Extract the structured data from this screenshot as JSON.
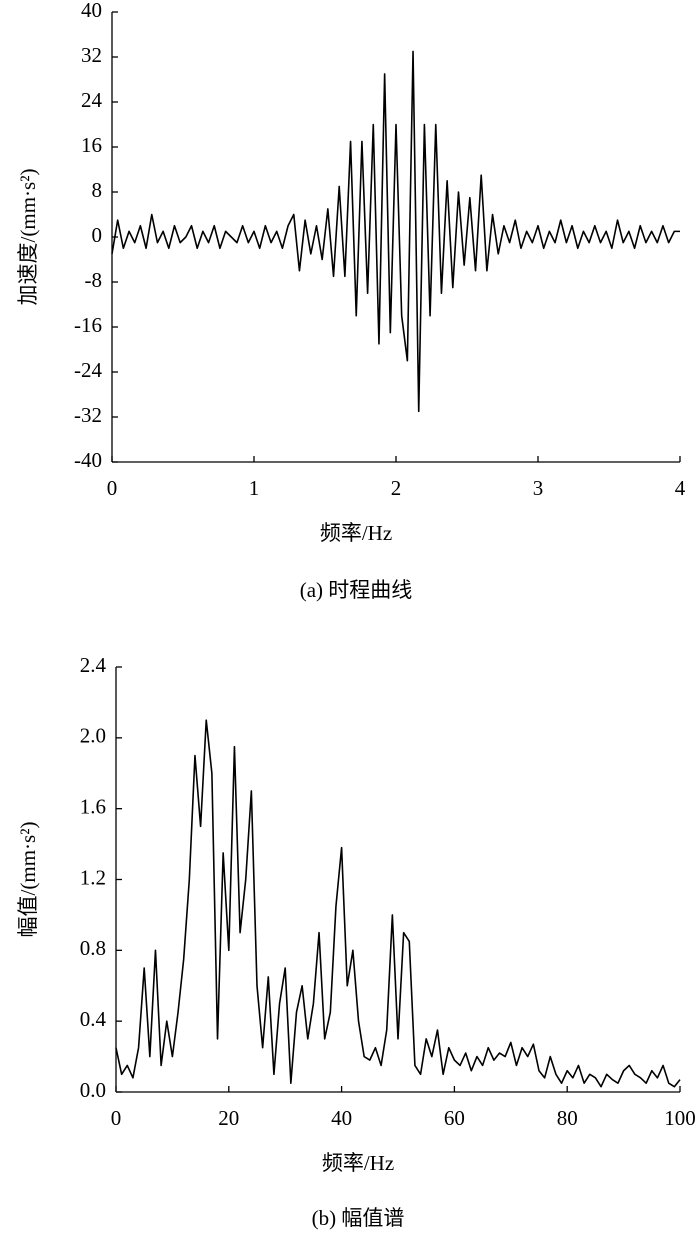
{
  "chart_data": [
    {
      "type": "line",
      "color": "#000000",
      "x_label": "频率/Hz",
      "y_label": "加速度/(mm·s²)",
      "caption": "(a) 时程曲线",
      "xlim": [
        0,
        4
      ],
      "ylim": [
        -40,
        40
      ],
      "xticks": [
        0,
        1,
        2,
        3,
        4
      ],
      "yticks": [
        40,
        32,
        24,
        16,
        8,
        0,
        -8,
        -16,
        -24,
        -32,
        -40
      ],
      "x": [
        0,
        0.04,
        0.08,
        0.12,
        0.16,
        0.2,
        0.24,
        0.28,
        0.32,
        0.36,
        0.4,
        0.44,
        0.48,
        0.52,
        0.56,
        0.6,
        0.64,
        0.68,
        0.72,
        0.76,
        0.8,
        0.84,
        0.88,
        0.92,
        0.96,
        1,
        1.04,
        1.08,
        1.12,
        1.16,
        1.2,
        1.24,
        1.28,
        1.32,
        1.36,
        1.4,
        1.44,
        1.48,
        1.52,
        1.56,
        1.6,
        1.64,
        1.68,
        1.72,
        1.76,
        1.8,
        1.84,
        1.88,
        1.92,
        1.96,
        2,
        2.04,
        2.08,
        2.12,
        2.16,
        2.2,
        2.24,
        2.28,
        2.32,
        2.36,
        2.4,
        2.44,
        2.48,
        2.52,
        2.56,
        2.6,
        2.64,
        2.68,
        2.72,
        2.76,
        2.8,
        2.84,
        2.88,
        2.92,
        2.96,
        3,
        3.04,
        3.08,
        3.12,
        3.16,
        3.2,
        3.24,
        3.28,
        3.32,
        3.36,
        3.4,
        3.44,
        3.48,
        3.52,
        3.56,
        3.6,
        3.64,
        3.68,
        3.72,
        3.76,
        3.8,
        3.84,
        3.88,
        3.92,
        3.96,
        4
      ],
      "values": [
        -3,
        3,
        -2,
        1,
        -1,
        2,
        -2,
        4,
        -1,
        1,
        -2,
        2,
        -1,
        0,
        2,
        -2,
        1,
        -1,
        2,
        -2,
        1,
        0,
        -1,
        2,
        -1,
        1,
        -2,
        2,
        -1,
        1,
        -2,
        2,
        4,
        -6,
        3,
        -3,
        2,
        -4,
        5,
        -7,
        9,
        -7,
        17,
        -14,
        17,
        -10,
        20,
        -19,
        29,
        -17,
        20,
        -14,
        -22,
        33,
        -31,
        20,
        -14,
        20,
        -10,
        10,
        -9,
        8,
        -5,
        7,
        -6,
        11,
        -6,
        4,
        -3,
        2,
        -1,
        3,
        -2,
        1,
        -1,
        2,
        -2,
        1,
        -1,
        3,
        -1,
        2,
        -2,
        1,
        -1,
        2,
        -1,
        1,
        -2,
        3,
        -1,
        1,
        -2,
        2,
        -1,
        1,
        -1,
        2,
        -1,
        1,
        1
      ]
    },
    {
      "type": "line",
      "color": "#000000",
      "x_label": "频率/Hz",
      "y_label": "幅值/(mm·s²)",
      "caption": "(b) 幅值谱",
      "xlim": [
        0,
        100
      ],
      "ylim": [
        0,
        2.4
      ],
      "xticks": [
        0,
        20,
        40,
        60,
        80,
        100
      ],
      "yticks": [
        {
          "value": 0,
          "label": "0.0"
        },
        0.4,
        0.8,
        1.2,
        1.6,
        {
          "value": 2,
          "label": "2.0"
        },
        2.4
      ],
      "x": [
        0,
        1,
        2,
        3,
        4,
        5,
        6,
        7,
        8,
        9,
        10,
        11,
        12,
        13,
        14,
        15,
        16,
        17,
        18,
        19,
        20,
        21,
        22,
        23,
        24,
        25,
        26,
        27,
        28,
        29,
        30,
        31,
        32,
        33,
        34,
        35,
        36,
        37,
        38,
        39,
        40,
        41,
        42,
        43,
        44,
        45,
        46,
        47,
        48,
        49,
        50,
        51,
        52,
        53,
        54,
        55,
        56,
        57,
        58,
        59,
        60,
        61,
        62,
        63,
        64,
        65,
        66,
        67,
        68,
        69,
        70,
        71,
        72,
        73,
        74,
        75,
        76,
        77,
        78,
        79,
        80,
        81,
        82,
        83,
        84,
        85,
        86,
        87,
        88,
        89,
        90,
        91,
        92,
        93,
        94,
        95,
        96,
        97,
        98,
        99,
        100
      ],
      "values": [
        0.25,
        0.1,
        0.15,
        0.08,
        0.25,
        0.7,
        0.2,
        0.8,
        0.15,
        0.4,
        0.2,
        0.45,
        0.75,
        1.2,
        1.9,
        1.5,
        2.1,
        1.8,
        0.3,
        1.35,
        0.8,
        1.95,
        0.9,
        1.2,
        1.7,
        0.6,
        0.25,
        0.65,
        0.1,
        0.5,
        0.7,
        0.05,
        0.45,
        0.6,
        0.3,
        0.5,
        0.9,
        0.3,
        0.45,
        1.05,
        1.38,
        0.6,
        0.8,
        0.4,
        0.2,
        0.18,
        0.25,
        0.15,
        0.35,
        1.0,
        0.3,
        0.9,
        0.85,
        0.15,
        0.1,
        0.3,
        0.2,
        0.35,
        0.1,
        0.25,
        0.18,
        0.15,
        0.22,
        0.12,
        0.2,
        0.15,
        0.25,
        0.18,
        0.22,
        0.2,
        0.28,
        0.15,
        0.25,
        0.2,
        0.27,
        0.12,
        0.08,
        0.2,
        0.1,
        0.05,
        0.12,
        0.08,
        0.15,
        0.05,
        0.1,
        0.08,
        0.03,
        0.1,
        0.07,
        0.05,
        0.12,
        0.15,
        0.1,
        0.08,
        0.05,
        0.12,
        0.08,
        0.15,
        0.05,
        0.03,
        0.07
      ]
    }
  ]
}
